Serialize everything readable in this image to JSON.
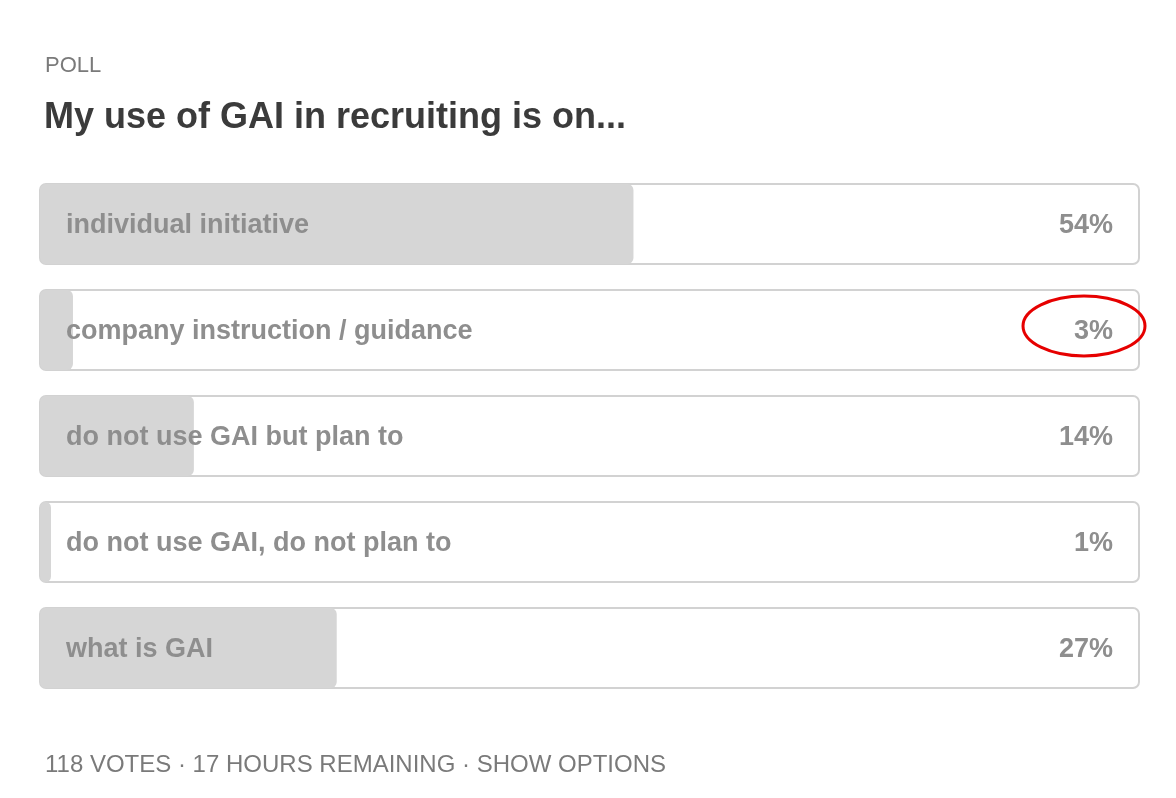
{
  "chart_data": {
    "type": "bar",
    "orientation": "horizontal",
    "subtitle": "POLL",
    "title": "My use of GAI in recruiting is on...",
    "categories": [
      "individual initiative",
      "company instruction / guidance",
      "do not use GAI but plan to",
      "do not use GAI, do not plan to",
      "what is GAI"
    ],
    "values": [
      54,
      3,
      14,
      1,
      27
    ],
    "value_labels": [
      "54%",
      "3%",
      "14%",
      "1%",
      "27%"
    ],
    "color": "#d6d6d6",
    "xlim": [
      0,
      100
    ],
    "tick_labels": "y",
    "annotations": [
      "118 VOTES · 17 HOURS REMAINING · SHOW OPTIONS"
    ]
  }
}
